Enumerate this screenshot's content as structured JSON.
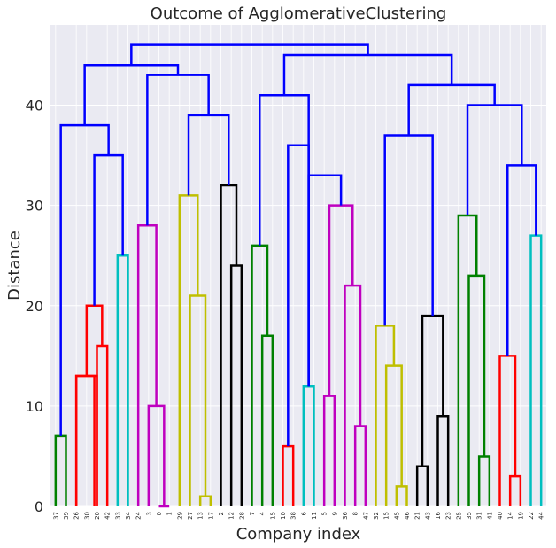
{
  "chart_data": {
    "type": "dendrogram",
    "title": "Outcome of AgglomerativeClustering",
    "xlabel": "Company index",
    "ylabel": "Distance",
    "ylim": [
      0,
      48
    ],
    "yticks": [
      0,
      10,
      20,
      30,
      40
    ],
    "grid": true,
    "leaf_labels": [
      "37",
      "39",
      "26",
      "30",
      "20",
      "42",
      "33",
      "34",
      "24",
      "3",
      "0",
      "1",
      "29",
      "27",
      "13",
      "17",
      "2",
      "12",
      "28",
      "7",
      "4",
      "15",
      "10",
      "38",
      "6",
      "11",
      "5",
      "9",
      "36",
      "8",
      "47",
      "32",
      "15",
      "45",
      "46",
      "21",
      "43",
      "16",
      "23",
      "25",
      "35",
      "31",
      "41",
      "40",
      "14",
      "19",
      "22",
      "44"
    ],
    "links": [
      {
        "left": 0,
        "right": 1,
        "height": 7,
        "color": "#008000"
      },
      {
        "left": 2,
        "right": 4,
        "height": 13,
        "color": "#ff0000"
      },
      {
        "left": 4,
        "right": 5,
        "height": 16,
        "color": "#ff0000"
      },
      {
        "left": 3,
        "right": 4.5,
        "height": 20,
        "color": "#ff0000"
      },
      {
        "left": 2,
        "right": 3.75,
        "height": 13,
        "color": "#ff0000"
      },
      {
        "left": 6,
        "right": 7,
        "height": 25,
        "color": "#00bfbf"
      },
      {
        "left": 3.75,
        "right": 6.5,
        "height": 35,
        "color": "#0000ff"
      },
      {
        "left": 0.5,
        "right": 5.125,
        "height": 38,
        "color": "#0000ff"
      },
      {
        "left": 10,
        "right": 11,
        "height": 0,
        "color": "#bf00bf"
      },
      {
        "left": 9,
        "right": 10.5,
        "height": 10,
        "color": "#bf00bf"
      },
      {
        "left": 8,
        "right": 9.75,
        "height": 28,
        "color": "#bf00bf"
      },
      {
        "left": 14,
        "right": 15,
        "height": 1,
        "color": "#bfbf00"
      },
      {
        "left": 13,
        "right": 14.5,
        "height": 21,
        "color": "#bfbf00"
      },
      {
        "left": 12,
        "right": 13.75,
        "height": 31,
        "color": "#bfbf00"
      },
      {
        "left": 17,
        "right": 18,
        "height": 24,
        "color": "#000000"
      },
      {
        "left": 16,
        "right": 17.5,
        "height": 32,
        "color": "#000000"
      },
      {
        "left": 12.875,
        "right": 16.75,
        "height": 39,
        "color": "#0000ff"
      },
      {
        "left": 8.875,
        "right": 14.8125,
        "height": 43,
        "color": "#0000ff"
      },
      {
        "left": 2.8125,
        "right": 11.84375,
        "height": 44,
        "color": "#0000ff"
      },
      {
        "left": 20,
        "right": 21,
        "height": 17,
        "color": "#008000"
      },
      {
        "left": 19,
        "right": 20.5,
        "height": 26,
        "color": "#008000"
      },
      {
        "left": 22,
        "right": 23,
        "height": 6,
        "color": "#ff0000"
      },
      {
        "left": 24,
        "right": 25,
        "height": 12,
        "color": "#00bfbf"
      },
      {
        "left": 22.5,
        "right": 24.5,
        "height": 36,
        "color": "#0000ff"
      },
      {
        "left": 29,
        "right": 30,
        "height": 8,
        "color": "#bf00bf"
      },
      {
        "left": 28,
        "right": 29.5,
        "height": 22,
        "color": "#bf00bf"
      },
      {
        "left": 26,
        "right": 27,
        "height": 11,
        "color": "#bf00bf"
      },
      {
        "left": 26.5,
        "right": 28.75,
        "height": 30,
        "color": "#bf00bf"
      },
      {
        "left": 24.5,
        "right": 27.625,
        "height": 33,
        "color": "#0000ff"
      },
      {
        "left": 19.75,
        "right": 24.5,
        "height": 41,
        "color": "#0000ff"
      },
      {
        "left": 33,
        "right": 34,
        "height": 2,
        "color": "#bfbf00"
      },
      {
        "left": 32,
        "right": 33.5,
        "height": 14,
        "color": "#bfbf00"
      },
      {
        "left": 31,
        "right": 32.75,
        "height": 18,
        "color": "#bfbf00"
      },
      {
        "left": 35,
        "right": 36,
        "height": 4,
        "color": "#000000"
      },
      {
        "left": 37,
        "right": 38,
        "height": 9,
        "color": "#000000"
      },
      {
        "left": 35.5,
        "right": 37.5,
        "height": 19,
        "color": "#000000"
      },
      {
        "left": 31.875,
        "right": 36.5,
        "height": 37,
        "color": "#0000ff"
      },
      {
        "left": 41,
        "right": 42,
        "height": 5,
        "color": "#008000"
      },
      {
        "left": 40,
        "right": 41.5,
        "height": 23,
        "color": "#008000"
      },
      {
        "left": 39,
        "right": 40.75,
        "height": 29,
        "color": "#008000"
      },
      {
        "left": 44,
        "right": 45,
        "height": 3,
        "color": "#ff0000"
      },
      {
        "left": 43,
        "right": 44.5,
        "height": 15,
        "color": "#ff0000"
      },
      {
        "left": 46,
        "right": 47,
        "height": 27,
        "color": "#00bfbf"
      },
      {
        "left": 43.75,
        "right": 46.5,
        "height": 34,
        "color": "#0000ff"
      },
      {
        "left": 39.875,
        "right": 45.125,
        "height": 40,
        "color": "#0000ff"
      },
      {
        "left": 34.1875,
        "right": 42.5,
        "height": 42,
        "color": "#0000ff"
      },
      {
        "left": 22.125,
        "right": 38.34375,
        "height": 45,
        "color": "#0000ff"
      },
      {
        "left": 7.328125,
        "right": 30.234375,
        "height": 46,
        "color": "#0000ff"
      }
    ]
  }
}
